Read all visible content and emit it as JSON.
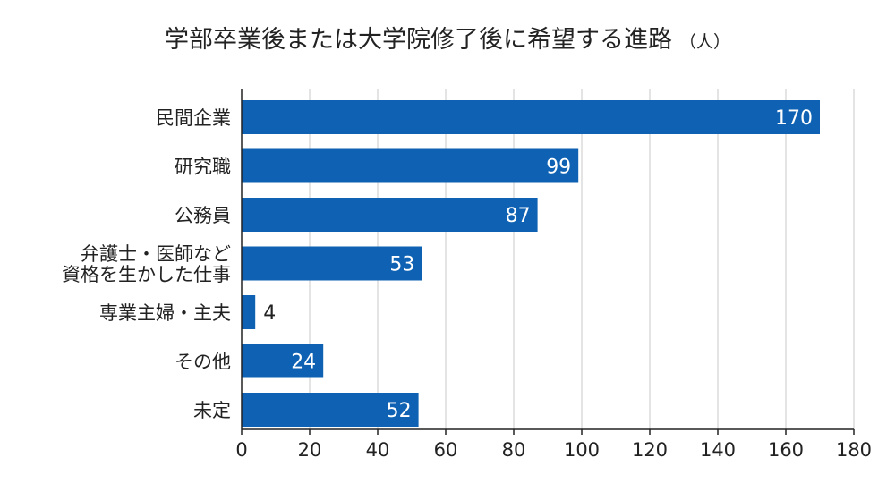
{
  "chart_data": {
    "type": "bar",
    "orientation": "horizontal",
    "title": "学部卒業後または大学院修了後に希望する進路",
    "unit": "（人）",
    "categories": [
      [
        "民間企業"
      ],
      [
        "研究職"
      ],
      [
        "公務員"
      ],
      [
        "弁護士・医師など",
        "資格を生かした仕事"
      ],
      [
        "専業主婦・主夫"
      ],
      [
        "その他"
      ],
      [
        "未定"
      ]
    ],
    "values": [
      170,
      99,
      87,
      53,
      4,
      24,
      52
    ],
    "xlim": [
      0,
      180
    ],
    "xticks": [
      0,
      20,
      40,
      60,
      80,
      100,
      120,
      140,
      160,
      180
    ],
    "grid": true,
    "bar_color": "#0f62b3"
  }
}
